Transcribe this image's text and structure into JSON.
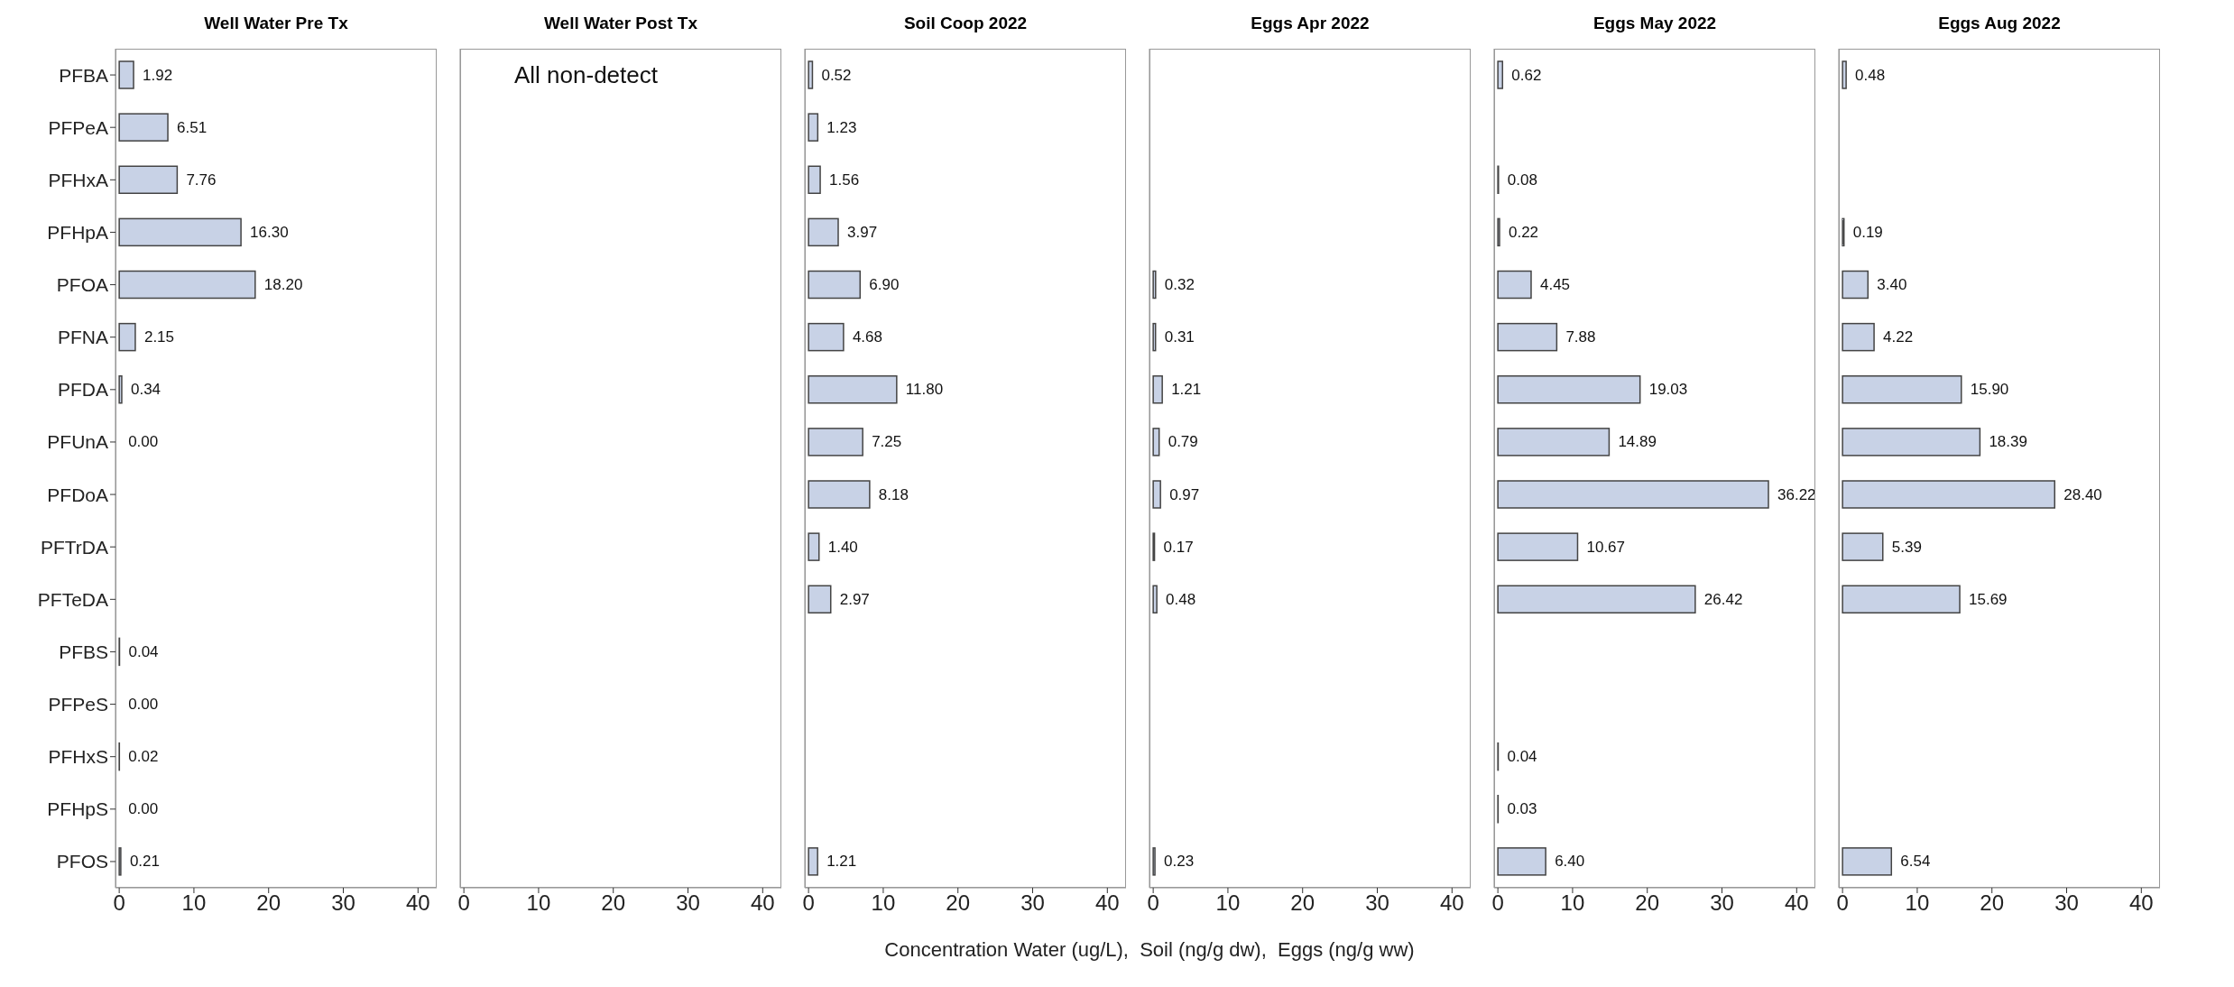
{
  "chart_data": [
    {
      "type": "bar",
      "orientation": "horizontal",
      "title": "Well Water Pre Tx",
      "categories": [
        "PFBA",
        "PFPeA",
        "PFHxA",
        "PFHpA",
        "PFOA",
        "PFNA",
        "PFDA",
        "PFUnA",
        "PFDoA",
        "PFTrDA",
        "PFTeDA",
        "PFBS",
        "PFPeS",
        "PFHxS",
        "PFHpS",
        "PFOS"
      ],
      "color": "#c8d2e6",
      "xlim": [
        -0.5,
        42.5
      ],
      "xticks": [
        0,
        10,
        20,
        30,
        40
      ],
      "values": [
        1.92,
        6.51,
        7.76,
        16.3,
        18.2,
        2.15,
        0.34,
        0,
        null,
        null,
        null,
        0.04,
        0,
        0.02,
        0,
        0.21
      ],
      "value_labels": [
        "1.92",
        "6.51",
        "7.76",
        "16.30",
        "18.20",
        "2.15",
        "0.34",
        "0.00",
        null,
        null,
        null,
        "0.04",
        "0.00",
        "0.02",
        "0.00",
        "0.21"
      ]
    },
    {
      "type": "bar",
      "orientation": "horizontal",
      "title": "Well Water Post Tx",
      "categories": [
        null,
        null,
        null,
        null,
        null,
        null,
        null,
        null,
        null,
        null,
        null,
        null,
        null,
        null,
        null,
        null
      ],
      "color": "#c8d2e6",
      "xlim": [
        -0.5,
        42.5
      ],
      "xticks": [
        0,
        10,
        20,
        30,
        40
      ],
      "annotations": [
        "All non-detect"
      ],
      "values": [
        null,
        null,
        null,
        null,
        null,
        null,
        null,
        null,
        null,
        null,
        null,
        null,
        null,
        null,
        null,
        null
      ]
    },
    {
      "type": "bar",
      "orientation": "horizontal",
      "title": "Soil Coop 2022",
      "categories": [
        null,
        null,
        null,
        null,
        null,
        null,
        null,
        null,
        null,
        null,
        null,
        null,
        null,
        null,
        null,
        null
      ],
      "color": "#c8d2e6",
      "xlim": [
        -0.5,
        42.5
      ],
      "xticks": [
        0,
        10,
        20,
        30,
        40
      ],
      "values": [
        0.52,
        1.23,
        1.56,
        3.97,
        6.9,
        4.68,
        11.8,
        7.25,
        8.18,
        1.4,
        2.97,
        null,
        null,
        null,
        null,
        1.21
      ],
      "value_labels": [
        "0.52",
        "1.23",
        "1.56",
        "3.97",
        "6.90",
        "4.68",
        "11.80",
        "7.25",
        "8.18",
        "1.40",
        "2.97",
        null,
        null,
        null,
        null,
        "1.21"
      ]
    },
    {
      "type": "bar",
      "orientation": "horizontal",
      "title": "Eggs Apr 2022",
      "xlabel": "Concentration Water (ug/L),  Soil (ng/g dw),  Eggs (ng/g ww)",
      "categories": [
        null,
        null,
        null,
        null,
        null,
        null,
        null,
        null,
        null,
        null,
        null,
        null,
        null,
        null,
        null,
        null
      ],
      "color": "#c8d2e6",
      "xlim": [
        -0.5,
        42.5
      ],
      "xticks": [
        0,
        10,
        20,
        30,
        40
      ],
      "values": [
        null,
        null,
        null,
        null,
        0.32,
        0.31,
        1.21,
        0.79,
        0.97,
        0.17,
        0.48,
        null,
        null,
        null,
        null,
        0.23
      ],
      "value_labels": [
        null,
        null,
        null,
        null,
        "0.32",
        "0.31",
        "1.21",
        "0.79",
        "0.97",
        "0.17",
        "0.48",
        null,
        null,
        null,
        null,
        "0.23"
      ]
    },
    {
      "type": "bar",
      "orientation": "horizontal",
      "title": "Eggs May 2022",
      "categories": [
        null,
        null,
        null,
        null,
        null,
        null,
        null,
        null,
        null,
        null,
        null,
        null,
        null,
        null,
        null,
        null
      ],
      "color": "#c8d2e6",
      "xlim": [
        -0.5,
        42.5
      ],
      "xticks": [
        0,
        10,
        20,
        30,
        40
      ],
      "values": [
        0.62,
        null,
        0.08,
        0.22,
        4.45,
        7.88,
        19.03,
        14.89,
        36.22,
        10.67,
        26.42,
        null,
        null,
        0.04,
        0.03,
        6.4
      ],
      "value_labels": [
        "0.62",
        null,
        "0.08",
        "0.22",
        "4.45",
        "7.88",
        "19.03",
        "14.89",
        "36.22",
        "10.67",
        "26.42",
        null,
        null,
        "0.04",
        "0.03",
        "6.40"
      ]
    },
    {
      "type": "bar",
      "orientation": "horizontal",
      "title": "Eggs Aug 2022",
      "categories": [
        null,
        null,
        null,
        null,
        null,
        null,
        null,
        null,
        null,
        null,
        null,
        null,
        null,
        null,
        null,
        null
      ],
      "color": "#c8d2e6",
      "xlim": [
        -0.5,
        42.5
      ],
      "xticks": [
        0,
        10,
        20,
        30,
        40
      ],
      "values": [
        0.48,
        null,
        null,
        0.19,
        3.4,
        4.22,
        15.9,
        18.39,
        28.4,
        5.39,
        15.69,
        null,
        null,
        null,
        null,
        6.54
      ],
      "value_labels": [
        "0.48",
        null,
        null,
        "0.19",
        "3.40",
        "4.22",
        "15.90",
        "18.39",
        "28.40",
        "5.39",
        "15.69",
        null,
        null,
        null,
        null,
        "6.54"
      ]
    }
  ]
}
